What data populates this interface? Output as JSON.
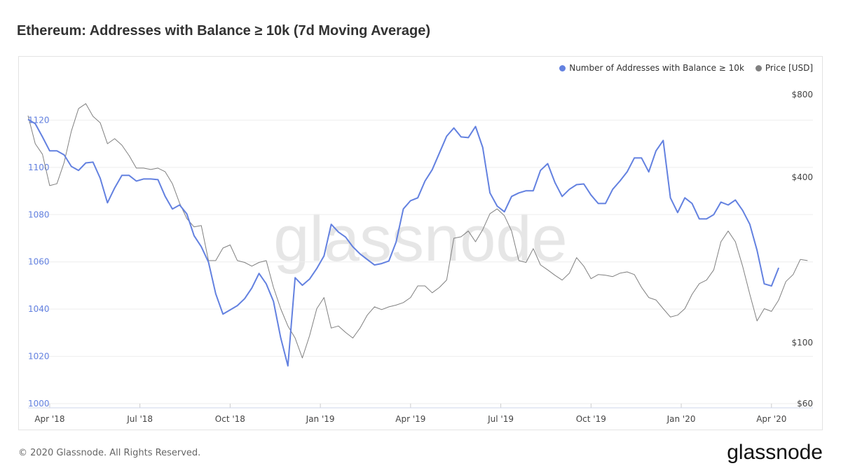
{
  "chart_data": {
    "type": "line",
    "title": "Ethereum: Addresses with Balance ≥ 10k (7d Moving Average)",
    "watermark": "glassnode",
    "x": [
      2018.19,
      2018.21,
      2018.23,
      2018.25,
      2018.27,
      2018.29,
      2018.31,
      2018.33,
      2018.35,
      2018.37,
      2018.39,
      2018.41,
      2018.43,
      2018.45,
      2018.47,
      2018.49,
      2018.51,
      2018.53,
      2018.55,
      2018.57,
      2018.59,
      2018.61,
      2018.63,
      2018.65,
      2018.67,
      2018.69,
      2018.71,
      2018.73,
      2018.75,
      2018.77,
      2018.79,
      2018.81,
      2018.83,
      2018.85,
      2018.87,
      2018.89,
      2018.91,
      2018.93,
      2018.95,
      2018.97,
      2018.99,
      2019.01,
      2019.03,
      2019.05,
      2019.07,
      2019.09,
      2019.11,
      2019.13,
      2019.15,
      2019.17,
      2019.19,
      2019.21,
      2019.23,
      2019.25,
      2019.27,
      2019.29,
      2019.31,
      2019.33,
      2019.35,
      2019.37,
      2019.39,
      2019.41,
      2019.43,
      2019.45,
      2019.47,
      2019.49,
      2019.51,
      2019.53,
      2019.55,
      2019.57,
      2019.59,
      2019.61,
      2019.63,
      2019.65,
      2019.67,
      2019.69,
      2019.71,
      2019.73,
      2019.75,
      2019.77,
      2019.79,
      2019.81,
      2019.83,
      2019.85,
      2019.87,
      2019.89,
      2019.91,
      2019.93,
      2019.95,
      2019.97,
      2019.99,
      2020.01,
      2020.03,
      2020.05,
      2020.07,
      2020.09,
      2020.11,
      2020.13,
      2020.15,
      2020.17,
      2020.19,
      2020.21,
      2020.23,
      2020.25,
      2020.27,
      2020.29,
      2020.31,
      2020.33,
      2020.35
    ],
    "series": [
      {
        "name": "Number of Addresses with Balance ≥ 10k",
        "color": "#6381e0",
        "axis": "y",
        "values": [
          1120.3,
          1118.5,
          1112.9,
          1107.0,
          1107.0,
          1105.3,
          1100.4,
          1098.7,
          1101.9,
          1102.2,
          1095.4,
          1085.0,
          1091.3,
          1096.6,
          1096.6,
          1094.2,
          1095.1,
          1095.1,
          1094.8,
          1087.7,
          1082.4,
          1084.1,
          1080.3,
          1071.1,
          1066.4,
          1059.9,
          1046.5,
          1037.9,
          1039.7,
          1041.5,
          1044.4,
          1048.9,
          1055.1,
          1050.7,
          1043.3,
          1027.9,
          1016.0,
          1053.3,
          1050.1,
          1052.7,
          1057.2,
          1062.5,
          1075.9,
          1072.6,
          1070.5,
          1066.4,
          1063.4,
          1061.0,
          1058.7,
          1059.3,
          1060.4,
          1068.4,
          1082.4,
          1085.9,
          1087.1,
          1094.2,
          1099.0,
          1106.1,
          1113.2,
          1116.7,
          1112.9,
          1112.6,
          1117.3,
          1108.4,
          1089.2,
          1083.6,
          1081.2,
          1087.7,
          1089.2,
          1090.1,
          1090.1,
          1098.7,
          1101.6,
          1093.6,
          1087.7,
          1090.7,
          1092.7,
          1093.0,
          1088.3,
          1084.7,
          1084.7,
          1090.7,
          1094.2,
          1098.1,
          1104.0,
          1104.0,
          1098.1,
          1107.0,
          1111.4,
          1087.1,
          1080.9,
          1087.1,
          1084.7,
          1078.2,
          1078.2,
          1080.0,
          1085.3,
          1084.1,
          1086.2,
          1081.8,
          1075.9,
          1064.9,
          1050.7,
          1049.8,
          1057.5,
          null,
          null,
          null,
          null
        ]
      },
      {
        "name": "Price [USD]",
        "color": "#808080",
        "axis": "y2",
        "values": [
          671,
          530,
          485,
          373,
          379,
          453,
          589,
          712,
          742,
          667,
          632,
          530,
          553,
          524,
          480,
          432,
          432,
          427,
          432,
          419,
          379,
          322,
          283,
          264,
          267,
          199,
          199,
          221,
          227,
          199,
          196,
          190,
          196,
          199,
          159,
          133,
          115,
          104,
          88,
          106,
          133,
          146,
          113,
          115,
          109,
          104,
          113,
          126,
          135,
          132,
          135,
          137,
          140,
          146,
          161,
          161,
          152,
          159,
          169,
          240,
          243,
          255,
          233,
          258,
          295,
          307,
          290,
          255,
          199,
          196,
          220,
          192,
          184,
          176,
          169,
          179,
          204,
          190,
          171,
          177,
          176,
          174,
          179,
          181,
          177,
          159,
          146,
          143,
          133,
          124,
          126,
          133,
          150,
          164,
          169,
          184,
          233,
          255,
          233,
          190,
          150,
          120,
          133,
          130,
          143,
          167,
          177,
          201,
          199
        ]
      }
    ],
    "xlim": [
      2018.19,
      2020.365
    ],
    "xticks": [
      {
        "value": 2018.25,
        "label": "Apr '18"
      },
      {
        "value": 2018.5,
        "label": "Jul '18"
      },
      {
        "value": 2018.75,
        "label": "Oct '18"
      },
      {
        "value": 2019.0,
        "label": "Jan '19"
      },
      {
        "value": 2019.25,
        "label": "Apr '19"
      },
      {
        "value": 2019.5,
        "label": "Jul '19"
      },
      {
        "value": 2019.75,
        "label": "Oct '19"
      },
      {
        "value": 2020.0,
        "label": "Jan '20"
      },
      {
        "value": 2020.25,
        "label": "Apr '20"
      }
    ],
    "ylim": [
      1000,
      1140
    ],
    "yticks": [
      1000,
      1020,
      1040,
      1060,
      1080,
      1100,
      1120
    ],
    "y2lim": [
      60,
      960
    ],
    "y2scale": "log",
    "y2ticks": [
      {
        "value": 60,
        "label": "$60"
      },
      {
        "value": 100,
        "label": "$100"
      },
      {
        "value": 400,
        "label": "$400"
      },
      {
        "value": 800,
        "label": "$800"
      }
    ],
    "grid": true,
    "legend": "top-right"
  },
  "footer": {
    "copyright": "© 2020 Glassnode. All Rights Reserved.",
    "logo": "glassnode"
  }
}
